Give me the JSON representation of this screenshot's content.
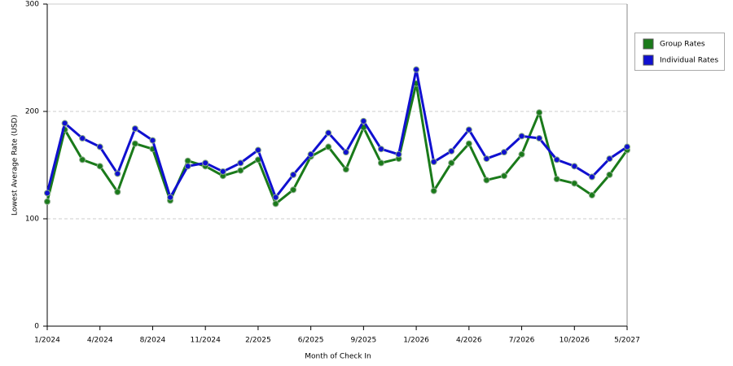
{
  "chart_data": {
    "type": "line",
    "x_label": "Month of Check In",
    "y_label": "Lowest Average Rate (USD)",
    "categories": [
      "1/2024",
      null,
      null,
      "4/2024",
      null,
      null,
      "8/2024",
      null,
      null,
      "11/2024",
      null,
      null,
      "2/2025",
      null,
      null,
      "6/2025",
      null,
      null,
      "9/2025",
      null,
      null,
      "1/2026",
      null,
      null,
      "4/2026",
      null,
      null,
      "7/2026",
      null,
      null,
      "10/2026",
      null,
      null,
      "5/2027"
    ],
    "series": [
      {
        "name": "Group Rates",
        "color": "#1a7a1a",
        "values": [
          116,
          183,
          155,
          149,
          125,
          170,
          165,
          117,
          154,
          149,
          140,
          145,
          155,
          114,
          127,
          158,
          167,
          146,
          185,
          152,
          156,
          226,
          126,
          152,
          170,
          136,
          140,
          160,
          199,
          137,
          133,
          122,
          141,
          164
        ]
      },
      {
        "name": "Individual Rates",
        "color": "#1010d0",
        "values": [
          124,
          189,
          175,
          167,
          142,
          184,
          173,
          120,
          149,
          152,
          144,
          152,
          164,
          120,
          141,
          160,
          180,
          162,
          191,
          165,
          160,
          239,
          153,
          163,
          183,
          156,
          162,
          177,
          175,
          155,
          149,
          139,
          156,
          167
        ]
      }
    ],
    "ylim": [
      0,
      300
    ],
    "yticks": [
      0,
      100,
      200,
      300
    ],
    "grid": true,
    "legend": "right"
  }
}
